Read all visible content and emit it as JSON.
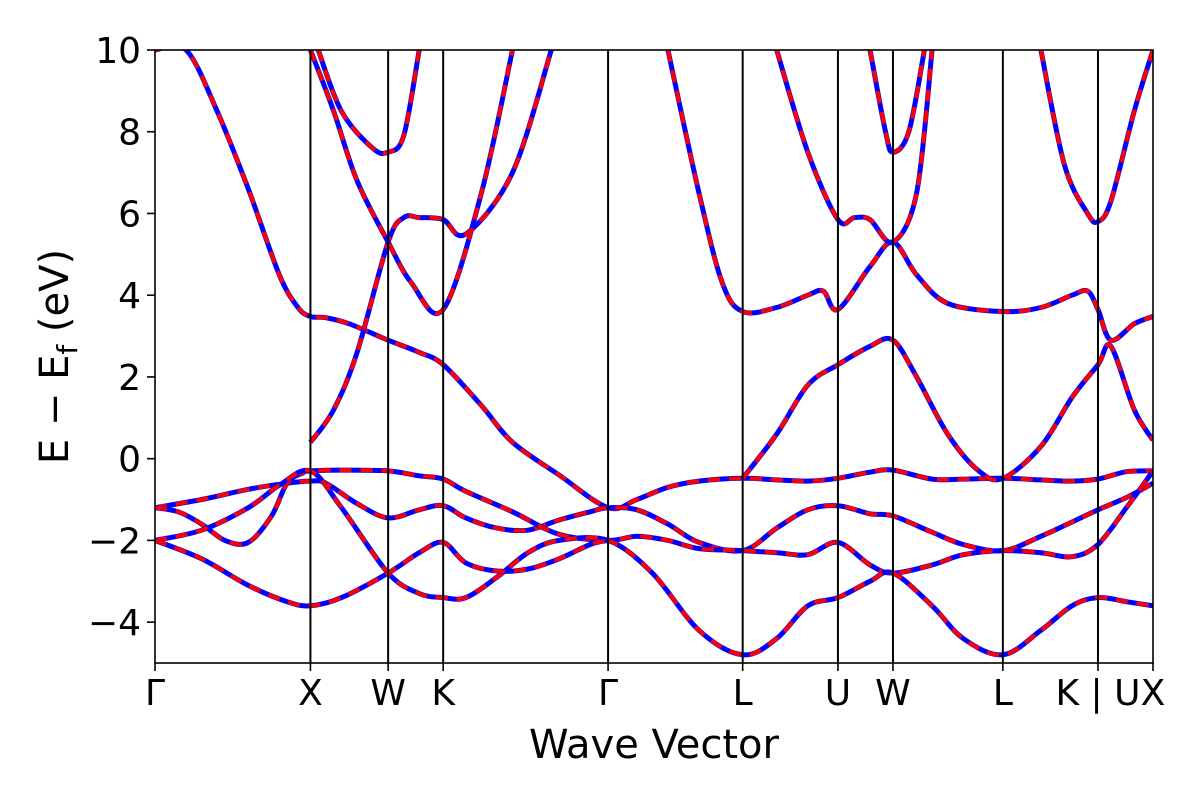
{
  "chart_data": {
    "type": "line",
    "xlabel": "Wave Vector",
    "ylabel_parts": {
      "main": "E − E",
      "sub": "f",
      "unit": " (eV)"
    },
    "ylim": [
      -5,
      10
    ],
    "yticks": [
      -4,
      -2,
      0,
      2,
      4,
      6,
      8,
      10
    ],
    "ytick_labels": [
      "−4",
      "−2",
      "0",
      "2",
      "4",
      "6",
      "8",
      "10"
    ],
    "grid": false,
    "high_symmetry_points": [
      {
        "label": "Γ",
        "k": 0.0
      },
      {
        "label": "X",
        "k": 1.0
      },
      {
        "label": "W",
        "k": 1.5
      },
      {
        "label": "K",
        "k": 1.854
      },
      {
        "label": "Γ",
        "k": 2.915
      },
      {
        "label": "L",
        "k": 3.781
      },
      {
        "label": "U",
        "k": 4.394
      },
      {
        "label": "W",
        "k": 4.748
      },
      {
        "label": "L",
        "k": 5.455
      },
      {
        "label": "K | U",
        "k": 6.067
      },
      {
        "label": "X",
        "k": 6.421
      }
    ],
    "xlim": [
      0,
      6.421
    ],
    "series_style": [
      {
        "color": "#0000ff",
        "dash": "none",
        "width": 5
      },
      {
        "color": "#ff0000",
        "dash": "12 9",
        "width": 4
      }
    ],
    "bands": [
      {
        "points": [
          [
            0,
            10.0
          ],
          [
            0.2,
            10.0
          ],
          [
            0.4,
            8.5
          ],
          [
            0.6,
            6.6
          ],
          [
            0.8,
            4.5
          ],
          [
            0.92,
            3.7
          ],
          [
            1.0,
            3.48
          ],
          [
            1.1,
            3.45
          ],
          [
            1.25,
            3.3
          ],
          [
            1.5,
            2.9
          ],
          [
            1.7,
            2.6
          ],
          [
            1.854,
            2.3
          ],
          [
            2.1,
            1.3
          ],
          [
            2.3,
            0.4
          ],
          [
            2.6,
            -0.4
          ],
          [
            2.915,
            -1.2
          ],
          [
            3.1,
            -1.0
          ],
          [
            3.3,
            -0.7
          ],
          [
            3.5,
            -0.55
          ],
          [
            3.781,
            -0.48
          ],
          [
            4.0,
            -0.52
          ],
          [
            4.2,
            -0.55
          ],
          [
            4.394,
            -0.48
          ],
          [
            4.6,
            -0.33
          ],
          [
            4.748,
            -0.28
          ],
          [
            5.0,
            -0.5
          ],
          [
            5.2,
            -0.5
          ],
          [
            5.455,
            -0.48
          ],
          [
            5.7,
            -0.52
          ],
          [
            5.9,
            -0.55
          ],
          [
            6.067,
            -0.5
          ],
          [
            6.25,
            -0.32
          ],
          [
            6.421,
            -0.3
          ]
        ]
      },
      {
        "points": [
          [
            0,
            -1.2
          ],
          [
            0.3,
            -1.0
          ],
          [
            0.6,
            -0.75
          ],
          [
            0.85,
            -0.6
          ],
          [
            1.0,
            -0.55
          ],
          [
            1.1,
            -0.6
          ],
          [
            1.3,
            -1.1
          ],
          [
            1.5,
            -1.45
          ],
          [
            1.7,
            -1.25
          ],
          [
            1.854,
            -1.15
          ],
          [
            2.0,
            -1.45
          ],
          [
            2.2,
            -1.7
          ],
          [
            2.4,
            -1.75
          ],
          [
            2.6,
            -1.5
          ],
          [
            2.8,
            -1.3
          ],
          [
            2.915,
            -1.2
          ],
          [
            3.1,
            -1.25
          ],
          [
            3.3,
            -1.6
          ],
          [
            3.5,
            -2.05
          ],
          [
            3.781,
            -2.25
          ],
          [
            4.0,
            -1.7
          ],
          [
            4.2,
            -1.25
          ],
          [
            4.394,
            -1.15
          ],
          [
            4.6,
            -1.35
          ],
          [
            4.748,
            -1.4
          ],
          [
            5.0,
            -1.8
          ],
          [
            5.2,
            -2.1
          ],
          [
            5.455,
            -2.25
          ],
          [
            5.7,
            -1.9
          ],
          [
            5.9,
            -1.55
          ],
          [
            6.067,
            -1.25
          ],
          [
            6.25,
            -0.95
          ],
          [
            6.421,
            -0.6
          ]
        ]
      },
      {
        "points": [
          [
            0,
            -1.2
          ],
          [
            0.15,
            -1.3
          ],
          [
            0.3,
            -1.6
          ],
          [
            0.45,
            -2.0
          ],
          [
            0.6,
            -2.05
          ],
          [
            0.75,
            -1.4
          ],
          [
            0.85,
            -0.6
          ],
          [
            0.95,
            -0.35
          ],
          [
            1.0,
            -0.3
          ],
          [
            1.2,
            -0.28
          ],
          [
            1.5,
            -0.3
          ],
          [
            1.7,
            -0.42
          ],
          [
            1.854,
            -0.5
          ],
          [
            2.0,
            -0.8
          ],
          [
            2.3,
            -1.3
          ],
          [
            2.6,
            -1.85
          ],
          [
            2.915,
            -2.0
          ],
          [
            3.1,
            -1.9
          ],
          [
            3.3,
            -2.0
          ],
          [
            3.5,
            -2.2
          ],
          [
            3.781,
            -2.25
          ],
          [
            4.0,
            -2.3
          ],
          [
            4.2,
            -2.35
          ],
          [
            4.394,
            -2.05
          ],
          [
            4.6,
            -2.6
          ],
          [
            4.748,
            -2.8
          ],
          [
            5.0,
            -2.6
          ],
          [
            5.2,
            -2.35
          ],
          [
            5.455,
            -2.25
          ],
          [
            5.7,
            -2.3
          ],
          [
            5.9,
            -2.4
          ],
          [
            6.067,
            -2.1
          ],
          [
            6.25,
            -1.2
          ],
          [
            6.421,
            -0.3
          ]
        ]
      },
      {
        "points": [
          [
            0,
            -2.0
          ],
          [
            0.3,
            -1.75
          ],
          [
            0.6,
            -1.2
          ],
          [
            0.8,
            -0.65
          ],
          [
            1.0,
            -0.3
          ],
          [
            1.2,
            -1.2
          ],
          [
            1.5,
            -2.8
          ],
          [
            1.7,
            -3.3
          ],
          [
            1.854,
            -3.4
          ],
          [
            2.0,
            -3.4
          ],
          [
            2.2,
            -2.9
          ],
          [
            2.4,
            -2.3
          ],
          [
            2.6,
            -2.0
          ],
          [
            2.915,
            -2.0
          ],
          [
            3.2,
            -2.8
          ],
          [
            3.5,
            -4.2
          ],
          [
            3.781,
            -4.8
          ],
          [
            4.0,
            -4.4
          ],
          [
            4.2,
            -3.6
          ],
          [
            4.394,
            -3.4
          ],
          [
            4.6,
            -3.0
          ],
          [
            4.748,
            -2.8
          ],
          [
            5.0,
            -3.6
          ],
          [
            5.2,
            -4.4
          ],
          [
            5.455,
            -4.8
          ],
          [
            5.7,
            -4.2
          ],
          [
            5.9,
            -3.6
          ],
          [
            6.067,
            -3.4
          ],
          [
            6.25,
            -3.5
          ],
          [
            6.421,
            -3.6
          ]
        ]
      },
      {
        "points": [
          [
            0,
            -2.0
          ],
          [
            0.3,
            -2.45
          ],
          [
            0.6,
            -3.1
          ],
          [
            0.85,
            -3.5
          ],
          [
            1.0,
            -3.6
          ],
          [
            1.2,
            -3.4
          ],
          [
            1.5,
            -2.8
          ],
          [
            1.7,
            -2.3
          ],
          [
            1.854,
            -2.05
          ],
          [
            2.0,
            -2.55
          ],
          [
            2.2,
            -2.75
          ],
          [
            2.4,
            -2.7
          ],
          [
            2.6,
            -2.45
          ],
          [
            2.8,
            -2.1
          ],
          [
            2.915,
            -2.0
          ]
        ]
      },
      {
        "points": [
          [
            1.0,
            0.4
          ],
          [
            1.15,
            1.2
          ],
          [
            1.3,
            2.6
          ],
          [
            1.5,
            5.3
          ],
          [
            1.6,
            5.9
          ],
          [
            1.7,
            5.9
          ],
          [
            1.854,
            5.85
          ],
          [
            2.0,
            5.5
          ],
          [
            2.3,
            7.0
          ],
          [
            2.55,
            10.0
          ]
        ]
      },
      {
        "points": [
          [
            1.0,
            10.0
          ],
          [
            1.15,
            8.5
          ],
          [
            1.3,
            6.8
          ],
          [
            1.5,
            5.3
          ],
          [
            1.65,
            4.3
          ],
          [
            1.854,
            3.65
          ],
          [
            2.1,
            6.5
          ],
          [
            2.3,
            10.0
          ]
        ]
      },
      {
        "points": [
          [
            1.05,
            10.0
          ],
          [
            1.2,
            8.5
          ],
          [
            1.4,
            7.6
          ],
          [
            1.5,
            7.5
          ],
          [
            1.6,
            7.9
          ],
          [
            1.7,
            10.0
          ]
        ]
      },
      {
        "points": [
          [
            3.3,
            10.0
          ],
          [
            3.5,
            6.5
          ],
          [
            3.65,
            4.3
          ],
          [
            3.781,
            3.6
          ],
          [
            4.0,
            3.7
          ],
          [
            4.2,
            4.0
          ],
          [
            4.3,
            4.1
          ],
          [
            4.394,
            3.65
          ],
          [
            4.6,
            4.7
          ],
          [
            4.748,
            5.3
          ],
          [
            4.9,
            4.5
          ],
          [
            5.1,
            3.8
          ],
          [
            5.455,
            3.6
          ],
          [
            5.7,
            3.7
          ],
          [
            5.9,
            4.0
          ],
          [
            6.0,
            4.1
          ],
          [
            6.067,
            3.65
          ],
          [
            6.15,
            2.9
          ],
          [
            6.3,
            3.3
          ],
          [
            6.421,
            3.48
          ]
        ]
      },
      {
        "points": [
          [
            4.0,
            10.0
          ],
          [
            4.2,
            7.5
          ],
          [
            4.394,
            5.85
          ],
          [
            4.5,
            5.9
          ],
          [
            4.6,
            5.85
          ],
          [
            4.748,
            5.3
          ],
          [
            4.9,
            6.5
          ],
          [
            5.0,
            10.0
          ]
        ]
      },
      {
        "points": [
          [
            4.6,
            10.0
          ],
          [
            4.7,
            8.0
          ],
          [
            4.748,
            7.5
          ],
          [
            4.85,
            8.0
          ],
          [
            4.95,
            10.0
          ]
        ]
      },
      {
        "points": [
          [
            3.781,
            -0.48
          ],
          [
            4.0,
            0.6
          ],
          [
            4.2,
            1.8
          ],
          [
            4.394,
            2.3
          ],
          [
            4.6,
            2.75
          ],
          [
            4.748,
            2.9
          ],
          [
            4.9,
            2.0
          ],
          [
            5.1,
            0.6
          ],
          [
            5.3,
            -0.3
          ],
          [
            5.455,
            -0.48
          ],
          [
            5.7,
            0.3
          ],
          [
            5.9,
            1.5
          ],
          [
            6.067,
            2.3
          ],
          [
            6.15,
            2.75
          ],
          [
            6.3,
            1.2
          ],
          [
            6.421,
            0.45
          ]
        ]
      },
      {
        "points": [
          [
            5.7,
            10.0
          ],
          [
            5.85,
            7.2
          ],
          [
            6.0,
            6.0
          ],
          [
            6.067,
            5.8
          ],
          [
            6.15,
            6.3
          ],
          [
            6.3,
            8.5
          ],
          [
            6.421,
            10.0
          ]
        ]
      }
    ]
  }
}
